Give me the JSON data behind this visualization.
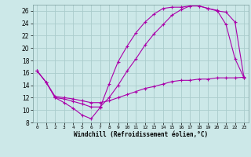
{
  "xlabel": "Windchill (Refroidissement éolien,°C)",
  "background_color": "#cce8e8",
  "line_color": "#aa00aa",
  "grid_color": "#aacccc",
  "xlim": [
    -0.5,
    23.5
  ],
  "ylim": [
    8,
    27
  ],
  "xticks": [
    0,
    1,
    2,
    3,
    4,
    5,
    6,
    7,
    8,
    9,
    10,
    11,
    12,
    13,
    14,
    15,
    16,
    17,
    18,
    19,
    20,
    21,
    22,
    23
  ],
  "yticks": [
    8,
    10,
    12,
    14,
    16,
    18,
    20,
    22,
    24,
    26
  ],
  "line1_x": [
    0,
    1,
    2,
    3,
    4,
    5,
    6,
    7,
    8,
    9,
    10,
    11,
    12,
    13,
    14,
    15,
    16,
    17,
    18,
    19,
    20,
    21,
    22,
    23
  ],
  "line1_y": [
    16.3,
    14.5,
    12.0,
    11.2,
    10.3,
    9.2,
    8.6,
    10.4,
    14.2,
    17.8,
    20.3,
    22.5,
    24.2,
    25.5,
    26.4,
    26.6,
    26.6,
    26.8,
    26.8,
    26.4,
    26.1,
    23.8,
    18.3,
    15.2
  ],
  "line2_x": [
    0,
    1,
    2,
    3,
    4,
    5,
    6,
    7,
    8,
    9,
    10,
    11,
    12,
    13,
    14,
    15,
    16,
    17,
    18,
    19,
    20,
    21,
    22,
    23
  ],
  "line2_y": [
    16.3,
    14.5,
    12.0,
    11.8,
    11.4,
    11.0,
    10.5,
    10.5,
    12.0,
    14.0,
    16.3,
    18.3,
    20.5,
    22.3,
    23.8,
    25.3,
    26.2,
    26.8,
    26.8,
    26.4,
    26.0,
    25.8,
    24.2,
    15.2
  ],
  "line3_x": [
    0,
    1,
    2,
    3,
    4,
    5,
    6,
    7,
    8,
    9,
    10,
    11,
    12,
    13,
    14,
    15,
    16,
    17,
    18,
    19,
    20,
    21,
    22,
    23
  ],
  "line3_y": [
    16.3,
    14.5,
    12.2,
    12.0,
    11.8,
    11.5,
    11.2,
    11.2,
    11.5,
    12.0,
    12.5,
    13.0,
    13.5,
    13.8,
    14.2,
    14.6,
    14.8,
    14.8,
    15.0,
    15.0,
    15.2,
    15.2,
    15.2,
    15.3
  ]
}
